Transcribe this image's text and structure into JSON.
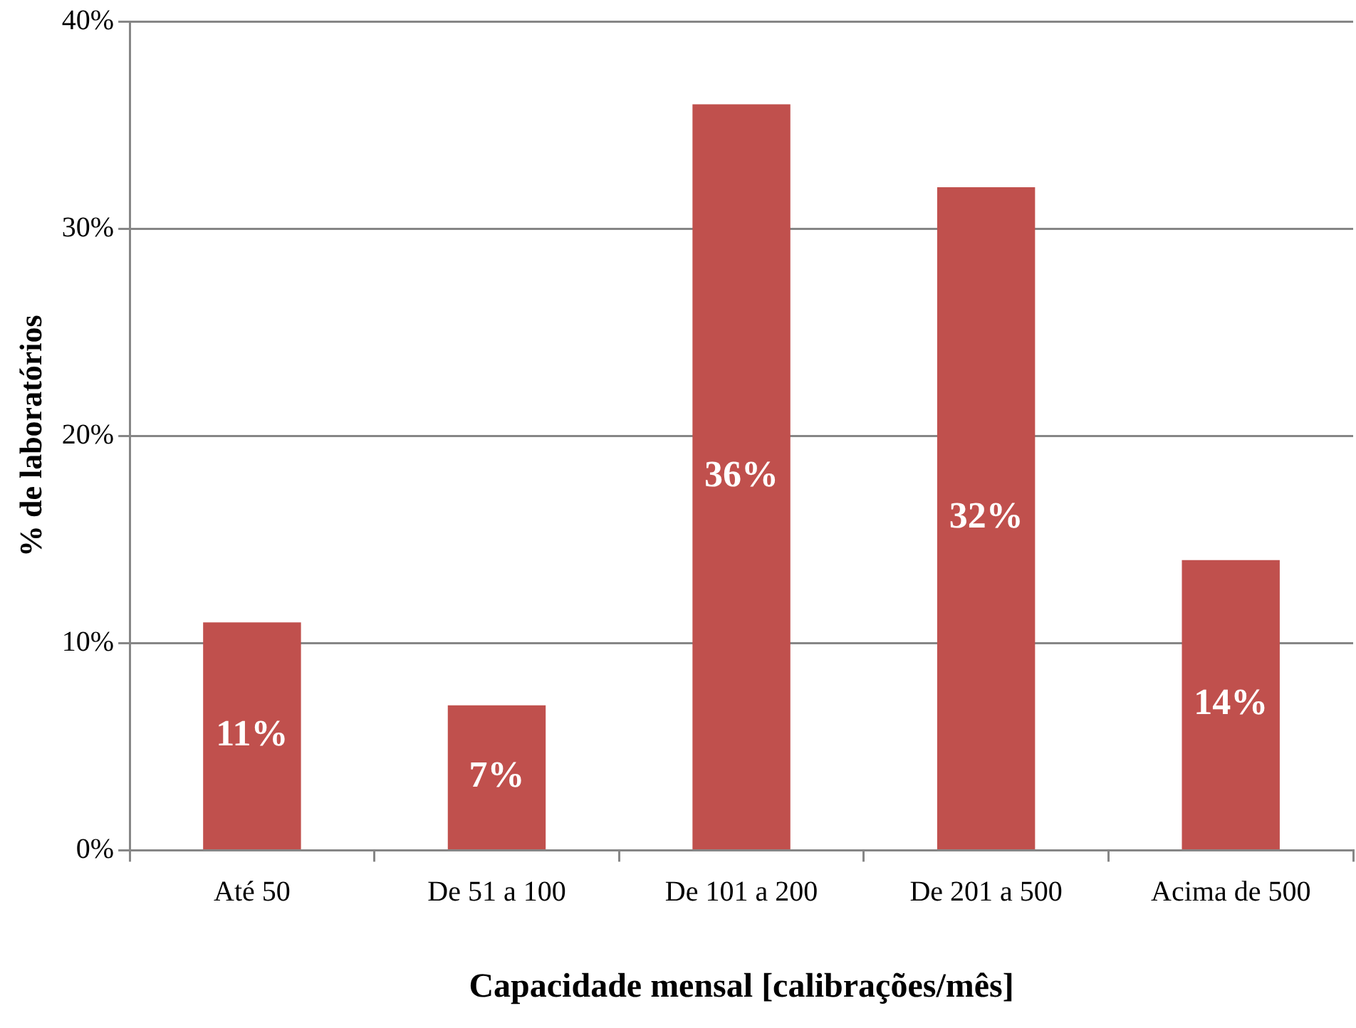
{
  "chart_data": {
    "type": "bar",
    "xlabel": "Capacidade mensal [calibrações/mês]",
    "ylabel": "% de laboratórios",
    "categories": [
      "Até 50",
      "De 51 a 100",
      "De 101 a 200",
      "De 201 a 500",
      "Acima de 500"
    ],
    "values": [
      11,
      7,
      36,
      32,
      14
    ],
    "value_labels": [
      "11%",
      "7%",
      "36%",
      "32%",
      "14%"
    ],
    "color": "#c0504d",
    "ylim": [
      0,
      40
    ],
    "yticks": [
      {
        "value": 0,
        "label": "0%"
      },
      {
        "value": 10,
        "label": "10%"
      },
      {
        "value": 20,
        "label": "20%"
      },
      {
        "value": 30,
        "label": "30%"
      },
      {
        "value": 40,
        "label": "40%"
      }
    ],
    "grid": "y",
    "legend": false
  }
}
